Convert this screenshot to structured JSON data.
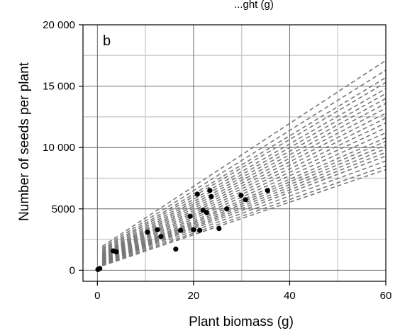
{
  "top_text": "...ght (g)",
  "chart_data": {
    "type": "scatter",
    "panel_label": "b",
    "xlabel": "Plant biomass (g)",
    "ylabel": "Number of seeds per plant",
    "xlim": [
      -3,
      60
    ],
    "ylim": [
      -900,
      20000
    ],
    "x_ticks": [
      0,
      20,
      40,
      60
    ],
    "x_tick_labels": [
      "0",
      "20",
      "40",
      "60"
    ],
    "y_ticks": [
      0,
      5000,
      10000,
      15000,
      20000
    ],
    "y_tick_labels": [
      "0",
      "5000",
      "10 000",
      "15 000",
      "20 000"
    ],
    "grid": true,
    "points": [
      {
        "x": 0.1,
        "y": 60
      },
      {
        "x": 0.3,
        "y": 100
      },
      {
        "x": 0.5,
        "y": 140
      },
      {
        "x": 3.3,
        "y": 1580
      },
      {
        "x": 3.9,
        "y": 1500
      },
      {
        "x": 10.4,
        "y": 3100
      },
      {
        "x": 12.5,
        "y": 3300
      },
      {
        "x": 13.2,
        "y": 2750
      },
      {
        "x": 16.3,
        "y": 1720
      },
      {
        "x": 17.3,
        "y": 3250
      },
      {
        "x": 19.3,
        "y": 4400
      },
      {
        "x": 20.0,
        "y": 3300
      },
      {
        "x": 20.8,
        "y": 6200
      },
      {
        "x": 21.3,
        "y": 3250
      },
      {
        "x": 22.0,
        "y": 4900
      },
      {
        "x": 22.7,
        "y": 4700
      },
      {
        "x": 23.4,
        "y": 6500
      },
      {
        "x": 23.7,
        "y": 6000
      },
      {
        "x": 25.3,
        "y": 3400
      },
      {
        "x": 26.9,
        "y": 5000
      },
      {
        "x": 29.9,
        "y": 6100
      },
      {
        "x": 30.8,
        "y": 5750
      },
      {
        "x": 35.4,
        "y": 6500
      }
    ],
    "fit_lines": {
      "x_start": 1,
      "x_end": 60,
      "lines": [
        {
          "y_start": 1950,
          "y_end": 17100
        },
        {
          "y_start": 1820,
          "y_end": 16300
        },
        {
          "y_start": 1700,
          "y_end": 15700
        },
        {
          "y_start": 1600,
          "y_end": 15300
        },
        {
          "y_start": 1500,
          "y_end": 14800
        },
        {
          "y_start": 1400,
          "y_end": 14400
        },
        {
          "y_start": 1320,
          "y_end": 14000
        },
        {
          "y_start": 1250,
          "y_end": 13600
        },
        {
          "y_start": 1180,
          "y_end": 13200
        },
        {
          "y_start": 1110,
          "y_end": 12800
        },
        {
          "y_start": 1050,
          "y_end": 12400
        },
        {
          "y_start": 990,
          "y_end": 12000
        },
        {
          "y_start": 930,
          "y_end": 11600
        },
        {
          "y_start": 870,
          "y_end": 11200
        },
        {
          "y_start": 810,
          "y_end": 10800
        },
        {
          "y_start": 760,
          "y_end": 10500
        },
        {
          "y_start": 710,
          "y_end": 10200
        },
        {
          "y_start": 660,
          "y_end": 9900
        },
        {
          "y_start": 610,
          "y_end": 9600
        },
        {
          "y_start": 560,
          "y_end": 9300
        },
        {
          "y_start": 500,
          "y_end": 8900
        },
        {
          "y_start": 430,
          "y_end": 8500
        },
        {
          "y_start": 360,
          "y_end": 8200
        }
      ],
      "color": "#777777"
    },
    "point_color": "#000000"
  }
}
